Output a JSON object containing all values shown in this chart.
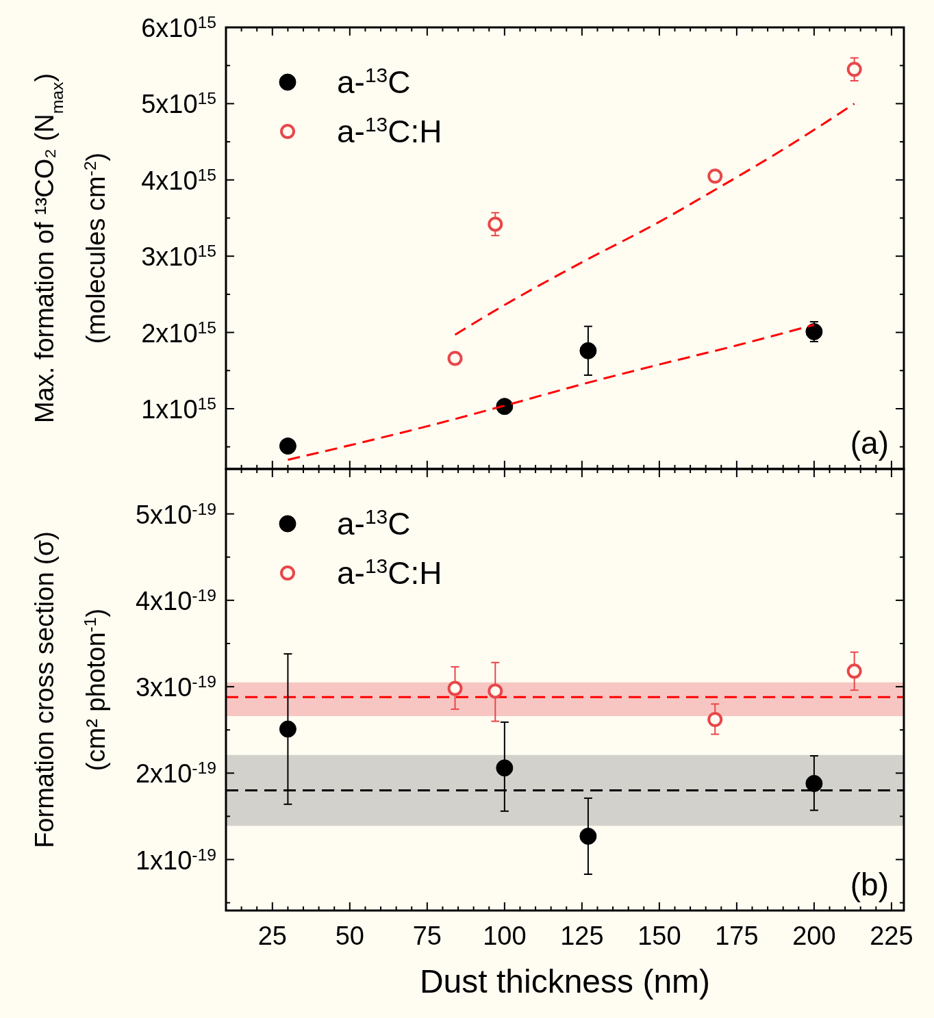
{
  "chart_data": [
    {
      "type": "scatter",
      "ylabel": "Max. formation of ¹³CO₂ (N$_{max}$)\n(molecules cm$^{-2}$)",
      "xlim": [
        10,
        229
      ],
      "xticks": [
        25,
        50,
        75,
        100,
        125,
        150,
        175,
        200,
        225
      ],
      "ylim": [
        210000000000000.0,
        6000000000000000.0
      ],
      "yticks": [
        {
          "value": 1000000000000000.0,
          "label": "1x10$^{15}$"
        },
        {
          "value": 2000000000000000.0,
          "label": "2x10$^{15}$"
        },
        {
          "value": 3000000000000000.0,
          "label": "3x10$^{15}$"
        },
        {
          "value": 4000000000000000.0,
          "label": "4x10$^{15}$"
        },
        {
          "value": 5000000000000000.0,
          "label": "5x10$^{15}$"
        },
        {
          "value": 6000000000000000.0,
          "label": "6x10$^{15}$"
        }
      ],
      "tick_labels": "y",
      "legend": "top left",
      "marker": "circle",
      "grid": false,
      "annotations": [
        "(a)"
      ],
      "series": [
        {
          "name": "a-$^{13}$C",
          "color": "#000000",
          "x": [
            30,
            100,
            127,
            200
          ],
          "values": [
            510000000000000.0,
            1030000000000000.0,
            1760000000000000.0,
            2010000000000000.0
          ],
          "errors": [
            null,
            null,
            320000000000000.0,
            130000000000000.0
          ]
        },
        {
          "name": "a-$^{13}$C:H",
          "color": "#e8474a",
          "x": [
            84,
            97,
            168,
            213
          ],
          "values": [
            1660000000000000.0,
            3420000000000000.0,
            4050000000000000.0,
            5450000000000000.0
          ],
          "errors": [
            50000000000000.0,
            150000000000000.0,
            50000000000000.0,
            150000000000000.0
          ]
        },
        {
          "type": "line",
          "marker": "none",
          "color": "#ff0000",
          "line_style": "dashed",
          "x": [
            30,
            50,
            75,
            100,
            125,
            150,
            175,
            200
          ],
          "values": [
            330000000000000.0,
            520000000000000.0,
            770000000000000.0,
            1040000000000000.0,
            1320000000000000.0,
            1580000000000000.0,
            1830000000000000.0,
            2100000000000000.0
          ]
        },
        {
          "type": "line",
          "marker": "none",
          "color": "#ff0000",
          "line_style": "dashed",
          "x": [
            84,
            100,
            125,
            150,
            168,
            190,
            213
          ],
          "values": [
            1970000000000000.0,
            2360000000000000.0,
            2920000000000000.0,
            3450000000000000.0,
            3870000000000000.0,
            4400000000000000.0,
            5000000000000000.0
          ]
        }
      ]
    },
    {
      "type": "scatter",
      "ylabel": "Formation cross section (σ)\n(cm² photon$^{-1}$)",
      "xlabel": "Dust thickness (nm)",
      "xlim": [
        10,
        229
      ],
      "xticks": [
        25,
        50,
        75,
        100,
        125,
        150,
        175,
        200,
        225
      ],
      "ylim": [
        4.1e-20,
        5.52e-19
      ],
      "yticks": [
        {
          "value": 1e-19,
          "label": "1x10$^{-19}$"
        },
        {
          "value": 2e-19,
          "label": "2x10$^{-19}$"
        },
        {
          "value": 3e-19,
          "label": "3x10$^{-19}$"
        },
        {
          "value": 4e-19,
          "label": "4x10$^{-19}$"
        },
        {
          "value": 5e-19,
          "label": "5x10$^{-19}$"
        }
      ],
      "legend": "top left",
      "marker": "circle",
      "grid": false,
      "annotations": [
        "(b)"
      ],
      "bands": [
        {
          "axis": "y",
          "from": 2.66e-19,
          "to": 3.05e-19,
          "color": "#f7c6c2"
        },
        {
          "axis": "y",
          "from": 1.39e-19,
          "to": 2.21e-19,
          "color": "#d2d1cb"
        }
      ],
      "ref_lines": [
        {
          "axis": "y",
          "value": 2.88e-19,
          "color": "#ff0000",
          "line_style": "dashed"
        },
        {
          "axis": "y",
          "value": 1.8e-19,
          "color": "#000000",
          "line_style": "dashed"
        }
      ],
      "series": [
        {
          "name": "a-$^{13}$C",
          "color": "#000000",
          "x": [
            30,
            100,
            127,
            200
          ],
          "values": [
            2.51e-19,
            2.06e-19,
            1.27e-19,
            1.88e-19
          ],
          "errors": [
            [
              1.64e-19,
              3.38e-19
            ],
            [
              1.56e-19,
              2.59e-19
            ],
            [
              8.3e-20,
              1.71e-19
            ],
            [
              1.57e-19,
              2.2e-19
            ]
          ]
        },
        {
          "name": "a-$^{13}$C:H",
          "color": "#e8474a",
          "x": [
            84,
            97,
            168,
            213
          ],
          "values": [
            2.98e-19,
            2.95e-19,
            2.62e-19,
            3.18e-19
          ],
          "errors": [
            [
              2.74e-19,
              3.23e-19
            ],
            [
              2.6e-19,
              3.28e-19
            ],
            [
              2.45e-19,
              2.8e-19
            ],
            [
              2.96e-19,
              3.4e-19
            ]
          ]
        }
      ]
    }
  ]
}
